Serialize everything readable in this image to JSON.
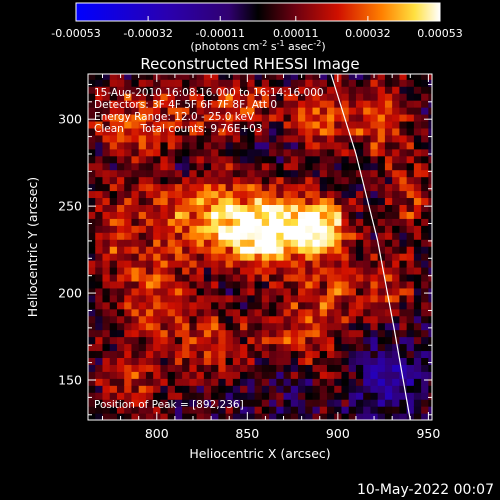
{
  "chart_data": {
    "type": "heatmap",
    "title": "Reconstructed RHESSI Image",
    "xlabel": "Heliocentric X (arcsec)",
    "ylabel": "Heliocentric Y (arcsec)",
    "xlim": [
      762,
      952
    ],
    "ylim": [
      127,
      326
    ],
    "x_ticks": [
      {
        "value": 800,
        "label": "800"
      },
      {
        "value": 850,
        "label": "850"
      },
      {
        "value": 900,
        "label": "900"
      },
      {
        "value": 950,
        "label": "950"
      }
    ],
    "y_ticks": [
      {
        "value": 150,
        "label": "150"
      },
      {
        "value": 200,
        "label": "200"
      },
      {
        "value": 250,
        "label": "250"
      },
      {
        "value": 300,
        "label": "300"
      }
    ],
    "colorbar": {
      "range": [
        -0.00053,
        0.00053
      ],
      "tick_labels": [
        "-0.00053",
        "-0.00032",
        "-0.00011",
        "0.00011",
        "0.00032",
        "0.00053"
      ],
      "tick_values": [
        -0.00053,
        -0.00032,
        -0.00011,
        0.00011,
        0.00032,
        0.00053
      ],
      "units_label": "(photons cm",
      "units_sup1": "-2",
      "units_mid1": " s",
      "units_sup2": "-1",
      "units_mid2": " asec",
      "units_sup3": "-2",
      "units_end": ")"
    },
    "annotations": [
      "15-Aug-2010 16:08:16.000 to 16:14:16.000",
      "Detectors: 3F 4F 5F 6F 7F 8F, Att 0",
      "Energy Range: 12.0 - 25.0 keV",
      "Clean     Total counts: 9.76E+03"
    ],
    "peak_label": "Position of Peak = [892,236]",
    "peak": {
      "x": 892,
      "y": 236
    },
    "limb_points": [
      [
        895,
        330
      ],
      [
        910,
        280
      ],
      [
        922,
        230
      ],
      [
        931,
        180
      ],
      [
        940,
        127
      ]
    ],
    "sources": [
      {
        "x": 858,
        "y": 236,
        "sx": 18,
        "sy": 16,
        "amp": 1.0
      },
      {
        "x": 890,
        "y": 238,
        "sx": 12,
        "sy": 12,
        "amp": 0.9
      },
      {
        "x": 822,
        "y": 250,
        "sx": 20,
        "sy": 18,
        "amp": 0.55
      },
      {
        "x": 800,
        "y": 200,
        "sx": 14,
        "sy": 22,
        "amp": 0.5
      },
      {
        "x": 790,
        "y": 300,
        "sx": 20,
        "sy": 16,
        "amp": 0.5
      },
      {
        "x": 845,
        "y": 305,
        "sx": 16,
        "sy": 12,
        "amp": 0.45
      },
      {
        "x": 890,
        "y": 300,
        "sx": 14,
        "sy": 14,
        "amp": 0.5
      },
      {
        "x": 925,
        "y": 300,
        "sx": 12,
        "sy": 16,
        "amp": 0.45
      },
      {
        "x": 940,
        "y": 255,
        "sx": 10,
        "sy": 16,
        "amp": 0.4
      },
      {
        "x": 930,
        "y": 205,
        "sx": 10,
        "sy": 14,
        "amp": 0.35
      },
      {
        "x": 875,
        "y": 175,
        "sx": 16,
        "sy": 14,
        "amp": 0.45
      },
      {
        "x": 830,
        "y": 170,
        "sx": 14,
        "sy": 14,
        "amp": 0.4
      },
      {
        "x": 785,
        "y": 150,
        "sx": 14,
        "sy": 14,
        "amp": 0.35
      },
      {
        "x": 775,
        "y": 235,
        "sx": 10,
        "sy": 20,
        "amp": 0.35
      },
      {
        "x": 905,
        "y": 150,
        "sx": 14,
        "sy": 10,
        "amp": 0.3
      },
      {
        "x": 900,
        "y": 200,
        "sx": 14,
        "sy": 14,
        "amp": 0.4
      }
    ],
    "neg_sources": [
      {
        "x": 925,
        "y": 150,
        "sx": 14,
        "sy": 12,
        "amp": 0.55
      },
      {
        "x": 815,
        "y": 270,
        "sx": 8,
        "sy": 8,
        "amp": 0.25
      },
      {
        "x": 860,
        "y": 290,
        "sx": 10,
        "sy": 8,
        "amp": 0.2
      },
      {
        "x": 880,
        "y": 150,
        "sx": 12,
        "sy": 10,
        "amp": 0.2
      }
    ]
  },
  "footer": {
    "date": "10-May-2022 00:07"
  }
}
